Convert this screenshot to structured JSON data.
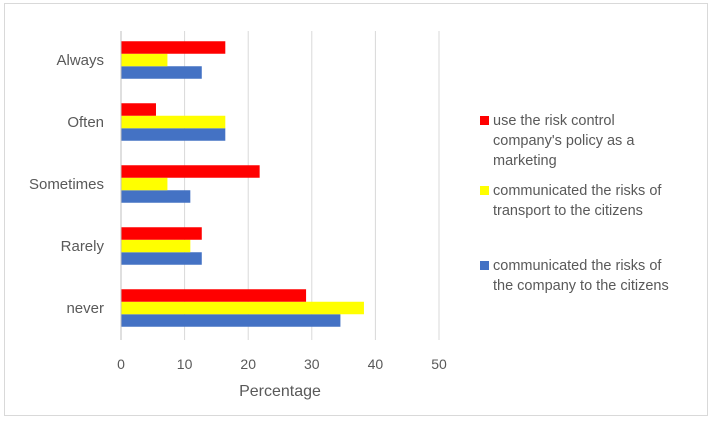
{
  "chart_data": {
    "type": "bar",
    "orientation": "horizontal",
    "categories": [
      "never",
      "Rarely",
      "Sometimes",
      "Often",
      "Always"
    ],
    "series": [
      {
        "name": "communicated the risks of the company to the citizens",
        "color": "#4472c4",
        "values": [
          34.5,
          12.7,
          10.9,
          16.4,
          12.7
        ]
      },
      {
        "name": "communicated the risks of transport to the citizens",
        "color": "#ffff00",
        "values": [
          38.2,
          10.9,
          7.3,
          16.4,
          7.3
        ]
      },
      {
        "name": "use the risk control company's policy as a marketing",
        "color": "#ff0000",
        "values": [
          29.1,
          12.7,
          21.8,
          5.5,
          16.4
        ]
      }
    ],
    "xlabel": "Percentage",
    "ylabel": "",
    "xlim": [
      0,
      50
    ],
    "xticks": [
      "0",
      "10",
      "20",
      "30",
      "40",
      "50"
    ],
    "grid": "vertical",
    "legend_position": "right",
    "legend": [
      {
        "lines": [
          "use the risk control",
          "company's policy as a",
          "marketing"
        ],
        "color": "#ff0000"
      },
      {
        "lines": [
          "communicated the risks of",
          "transport to the citizens"
        ],
        "color": "#ffff00"
      },
      {
        "lines": [
          "communicated the risks of",
          "the company to the citizens"
        ],
        "color": "#4472c4"
      }
    ]
  }
}
